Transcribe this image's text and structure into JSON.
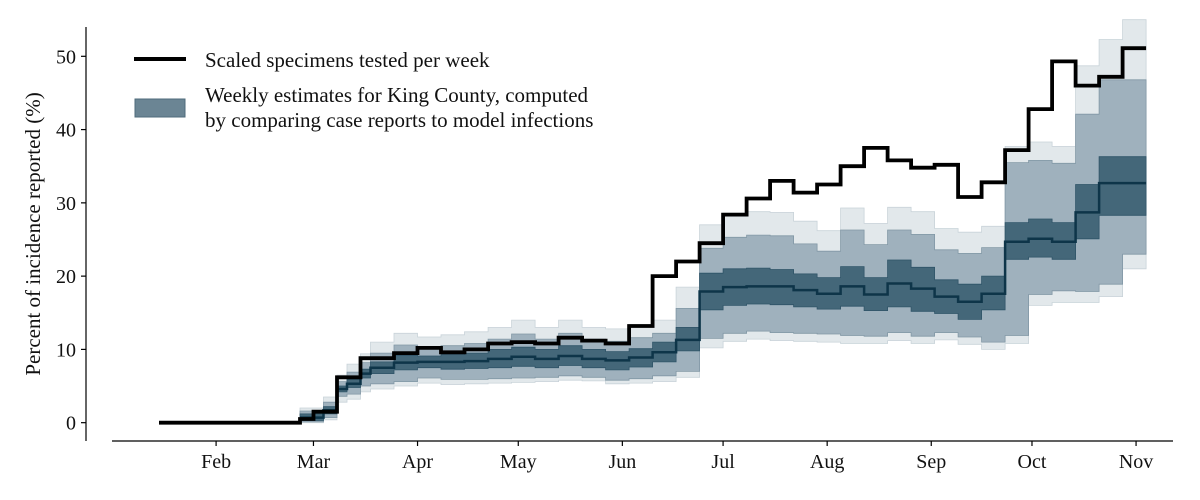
{
  "chart_data": {
    "type": "area",
    "ylabel": "Percent of incidence reported (%)",
    "xlabel": "",
    "title": "",
    "ylim": [
      -2.5,
      54
    ],
    "yticks": [
      0,
      10,
      20,
      30,
      40,
      50
    ],
    "x_unit": "days since Jan 1, 2020",
    "xlim": [
      0,
      316
    ],
    "xticks": [
      {
        "label": "Feb",
        "day": 31
      },
      {
        "label": "Mar",
        "day": 60
      },
      {
        "label": "Apr",
        "day": 91
      },
      {
        "label": "May",
        "day": 121
      },
      {
        "label": "Jun",
        "day": 152
      },
      {
        "label": "Jul",
        "day": 182
      },
      {
        "label": "Aug",
        "day": 213
      },
      {
        "label": "Sep",
        "day": 244
      },
      {
        "label": "Oct",
        "day": 274
      },
      {
        "label": "Nov",
        "day": 305
      }
    ],
    "grid": false,
    "legend_position": "top-left",
    "colors": {
      "line": "#000000",
      "band_outer": "#e2e8eb",
      "band_middle": "#9fb1bd",
      "band_inner": "#446779",
      "median": "#0e3549",
      "legend_patch": "#6b8594"
    },
    "series": [
      {
        "name": "Scaled specimens tested per week",
        "kind": "step-line",
        "x": [
          14,
          21,
          28,
          35,
          42,
          49,
          52,
          56,
          60,
          63,
          67,
          70,
          74,
          77,
          84,
          88,
          91,
          98,
          105,
          112,
          119,
          126,
          133,
          140,
          147,
          154,
          161,
          168,
          175,
          182,
          189,
          196,
          203,
          210,
          217,
          224,
          231,
          238,
          245,
          252,
          259,
          266,
          273,
          280,
          287,
          294,
          301,
          308
        ],
        "y": [
          0,
          0,
          0,
          0,
          0,
          0,
          0,
          0.5,
          1.5,
          1.5,
          6.2,
          6.2,
          8.8,
          8.8,
          9.5,
          9.5,
          10.2,
          9.6,
          10,
          10.8,
          11,
          10.8,
          11.6,
          11.2,
          10.8,
          13.2,
          20,
          22,
          24.5,
          28.4,
          30.6,
          33,
          31.4,
          32.5,
          35,
          37.5,
          35.8,
          34.8,
          35.2,
          30.8,
          32.8,
          37.2,
          42.8,
          49.3,
          46,
          47.2,
          51.1,
          51.1
        ]
      },
      {
        "name": "Weekly estimates for King County, computed by comparing case reports to model infections",
        "kind": "step-band",
        "x": [
          56,
          63,
          67,
          70,
          74,
          77,
          84,
          91,
          98,
          105,
          112,
          119,
          126,
          133,
          140,
          147,
          154,
          161,
          168,
          175,
          182,
          189,
          196,
          203,
          210,
          217,
          224,
          231,
          238,
          245,
          252,
          259,
          266,
          273,
          280,
          287,
          294,
          301,
          308
        ],
        "outer_lo": [
          0,
          0.4,
          2.8,
          3.2,
          4.2,
          4.6,
          5,
          5.4,
          5.2,
          5.3,
          5.4,
          5.5,
          5.6,
          5.8,
          5.7,
          5.3,
          5.4,
          5.6,
          6.2,
          10.2,
          11.1,
          11.4,
          11.2,
          11.1,
          11,
          10.8,
          10.8,
          11.2,
          10.8,
          11.3,
          10.7,
          10,
          10.8,
          16,
          16.4,
          16.4,
          17.2,
          21,
          21
        ],
        "outer_hi": [
          2,
          3.5,
          6.5,
          8,
          9.4,
          11,
          12.2,
          11.7,
          12,
          12.4,
          13,
          14,
          13,
          14,
          13,
          12.8,
          13.4,
          14,
          18.5,
          27,
          28.6,
          28.8,
          28.7,
          27.5,
          26.2,
          29.3,
          27.2,
          29.4,
          28.8,
          26.5,
          26,
          26.8,
          37.7,
          38.3,
          37.7,
          48.7,
          52.3,
          55,
          55
        ],
        "mid_lo": [
          0.1,
          0.7,
          3.6,
          3.9,
          5,
          5.3,
          5.6,
          6.1,
          5.9,
          5.9,
          6,
          6.1,
          6.2,
          6.4,
          6.2,
          5.8,
          6,
          6.4,
          7,
          11.5,
          12.2,
          12.5,
          12.3,
          12.2,
          12.1,
          11.9,
          11.8,
          12.3,
          11.8,
          12.3,
          11.7,
          11,
          11.9,
          17.5,
          18,
          17.9,
          18.9,
          23,
          23
        ],
        "mid_hi": [
          1.6,
          2.8,
          5.6,
          6.9,
          8.2,
          9.5,
          10.6,
          10.2,
          10.5,
          10.8,
          11.4,
          12.1,
          11.4,
          12.2,
          11.4,
          11.1,
          11.6,
          12.2,
          15.6,
          23.8,
          25.3,
          25.6,
          25.5,
          24.4,
          23.4,
          26.3,
          24.3,
          26.3,
          25.7,
          23.6,
          23.1,
          23.9,
          35.5,
          35.8,
          35.4,
          42.1,
          46.8,
          46.8,
          46.8
        ],
        "inner_lo": [
          0.3,
          1.2,
          4.2,
          4.8,
          6.1,
          6.7,
          7.2,
          7.5,
          7.3,
          7.4,
          7.5,
          7.7,
          7.5,
          7.8,
          7.5,
          7.2,
          7.6,
          8.3,
          9.8,
          15.4,
          16,
          16.2,
          16.1,
          15.8,
          15.5,
          15.9,
          15.3,
          15.8,
          15.2,
          14.9,
          14.1,
          15.4,
          22.3,
          22.6,
          22.3,
          25.1,
          28.3,
          28.3,
          28.3
        ],
        "inner_hi": [
          1.2,
          2.2,
          5,
          5.9,
          7.3,
          8.3,
          9.2,
          9.1,
          9.3,
          9.5,
          10,
          10.3,
          10,
          10.5,
          10,
          9.7,
          10.1,
          11,
          13,
          20.4,
          21,
          21.1,
          20.9,
          20.3,
          19.8,
          21.3,
          19.8,
          22.2,
          21.2,
          19.5,
          18.9,
          20,
          27.3,
          27.8,
          27.3,
          32.5,
          36.3,
          36.3,
          36.3
        ],
        "median": [
          0.7,
          1.7,
          4.6,
          5.3,
          6.7,
          7.5,
          8.2,
          8.3,
          8.3,
          8.4,
          8.7,
          9,
          8.7,
          9.1,
          8.7,
          8.5,
          8.9,
          9.6,
          11.3,
          17.9,
          18.5,
          18.6,
          18.6,
          18.1,
          17.6,
          18.6,
          17.5,
          19,
          18.3,
          17.2,
          16.5,
          17.6,
          24.7,
          25.1,
          24.7,
          28.7,
          32.7,
          32.7,
          32.7
        ]
      }
    ]
  },
  "legend": {
    "item1_label": "Scaled specimens tested per week",
    "item2_line1": "Weekly estimates for King County, computed",
    "item2_line2": "by comparing case reports to model infections"
  }
}
